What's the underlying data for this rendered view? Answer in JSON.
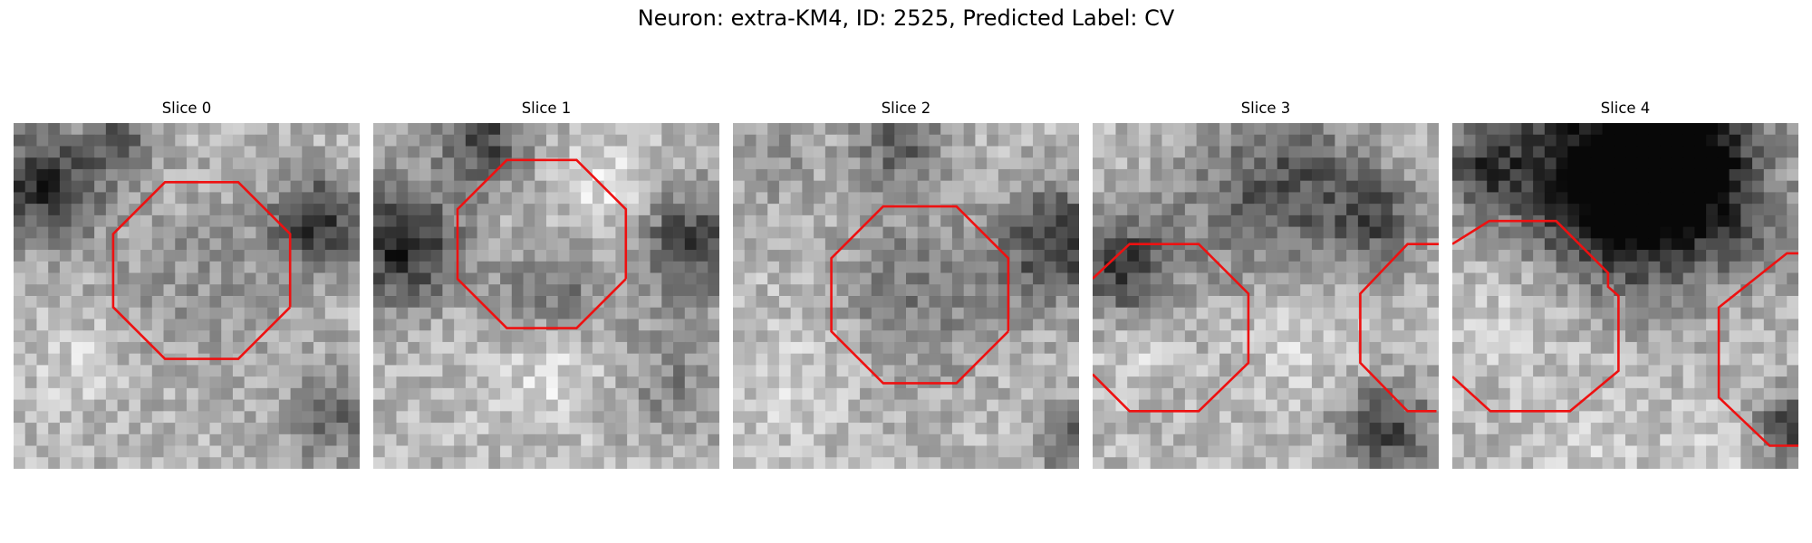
{
  "figure": {
    "title": "Neuron: extra-KM4, ID: 2525, Predicted Label: CV"
  },
  "slices": [
    {
      "title": "Slice 0"
    },
    {
      "title": "Slice 1"
    },
    {
      "title": "Slice 2"
    },
    {
      "title": "Slice 3"
    },
    {
      "title": "Slice 4"
    }
  ],
  "colors": {
    "outline": "#ee1111",
    "colormap": "grayscale"
  }
}
